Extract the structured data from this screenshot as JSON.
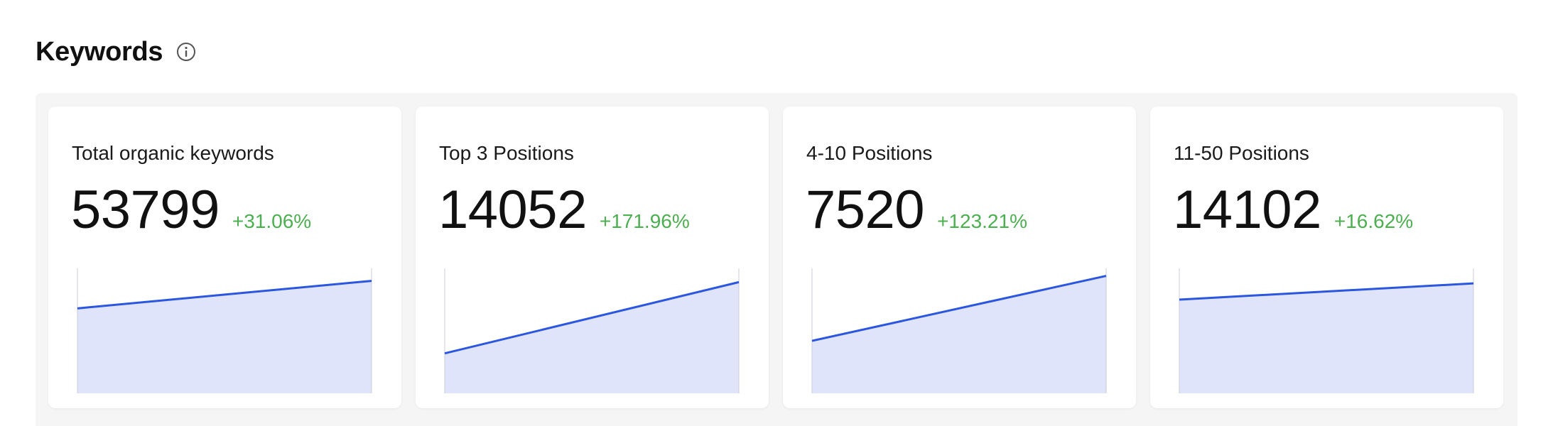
{
  "section": {
    "title": "Keywords",
    "info_icon": "info-circle-icon"
  },
  "colors": {
    "line": "#2b56e0",
    "fill": "#dfe4fb",
    "positive": "#4caf50",
    "panel_bg": "#f5f5f5"
  },
  "cards": [
    {
      "title": "Total organic keywords",
      "value": "53799",
      "change": "+31.06%",
      "trend": [
        0.68,
        0.9
      ]
    },
    {
      "title": "Top 3 Positions",
      "value": "14052",
      "change": "+171.96%",
      "trend": [
        0.32,
        0.89
      ]
    },
    {
      "title": "4-10 Positions",
      "value": "7520",
      "change": "+123.21%",
      "trend": [
        0.42,
        0.94
      ]
    },
    {
      "title": "11-50 Positions",
      "value": "14102",
      "change": "+16.62%",
      "trend": [
        0.75,
        0.88
      ]
    }
  ]
}
